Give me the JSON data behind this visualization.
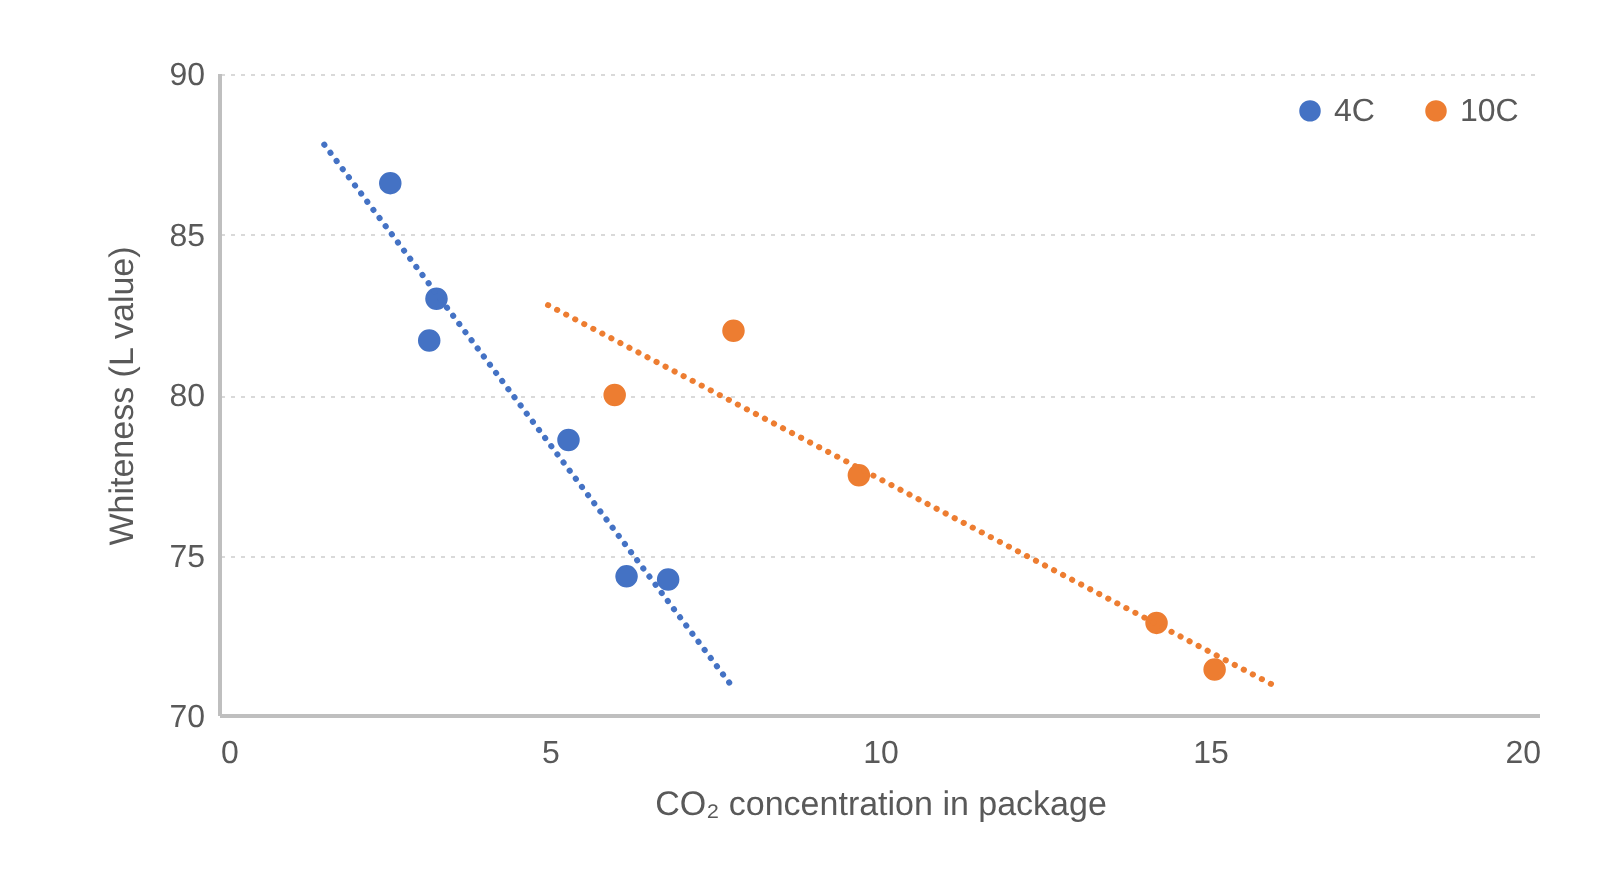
{
  "chart_data": {
    "type": "scatter",
    "xlabel": "CO₂ concentration in package",
    "ylabel": "Whiteness (L value)",
    "xlim": [
      0,
      20
    ],
    "xticks": [
      0,
      5,
      10,
      15,
      20
    ],
    "ylim": [
      70,
      90
    ],
    "yticks": [
      70,
      75,
      80,
      85,
      90
    ],
    "grid": "y",
    "legend": "top right",
    "series": [
      {
        "name": "4C",
        "color": "#4472c4",
        "marker": "circle",
        "x": [
          2.58,
          3.28,
          3.17,
          5.28,
          6.16,
          6.79
        ],
        "values": [
          86.6,
          83.0,
          81.7,
          78.6,
          74.35,
          74.25
        ]
      },
      {
        "name": "10C",
        "color": "#ed7d31",
        "marker": "circle",
        "x": [
          7.78,
          5.98,
          9.68,
          14.19,
          15.07
        ],
        "values": [
          82.0,
          80.0,
          77.5,
          72.9,
          71.45
        ]
      },
      {
        "type": "line",
        "color": "#4472c4",
        "line_style": "dotted",
        "marker": "none",
        "x": [
          1.58,
          7.73
        ],
        "values": [
          87.8,
          71.0
        ]
      },
      {
        "type": "line",
        "color": "#ed7d31",
        "line_style": "dotted",
        "marker": "none",
        "x": [
          4.97,
          15.96
        ],
        "values": [
          82.8,
          70.96
        ]
      }
    ]
  }
}
